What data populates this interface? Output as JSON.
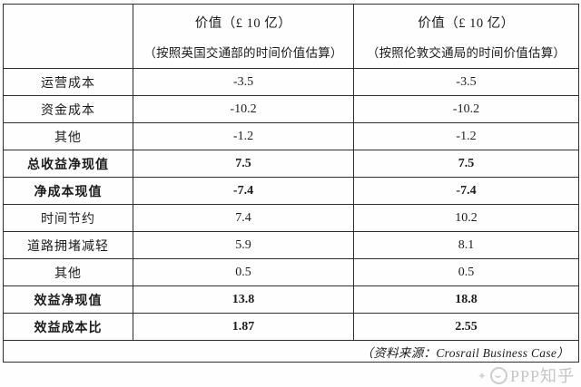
{
  "table": {
    "unit_note": "价值（£ 10 亿）",
    "header": {
      "blank": "",
      "col_dft": {
        "line1": "价值（£ 10 亿）",
        "line2": "（按照英国交通部的时间价值估算）"
      },
      "col_tfl": {
        "line1": "价值（£ 10 亿）",
        "line2": "（按照伦敦交通局的时间价值估算）"
      }
    },
    "rows": [
      {
        "label": "运营成本",
        "dft": "-3.5",
        "tfl": "-3.5",
        "bold": false
      },
      {
        "label": "资金成本",
        "dft": "-10.2",
        "tfl": "-10.2",
        "bold": false
      },
      {
        "label": "其他",
        "dft": "-1.2",
        "tfl": "-1.2",
        "bold": false
      },
      {
        "label": "总收益净现值",
        "dft": "7.5",
        "tfl": "7.5",
        "bold": true
      },
      {
        "label": "净成本现值",
        "dft": "-7.4",
        "tfl": "-7.4",
        "bold": true
      },
      {
        "label": "时间节约",
        "dft": "7.4",
        "tfl": "10.2",
        "bold": false
      },
      {
        "label": "道路拥堵减轻",
        "dft": "5.9",
        "tfl": "8.1",
        "bold": false
      },
      {
        "label": "其他",
        "dft": "0.5",
        "tfl": "0.5",
        "bold": false
      },
      {
        "label": "效益净现值",
        "dft": "13.8",
        "tfl": "18.8",
        "bold": true
      },
      {
        "label": "效益成本比",
        "dft": "1.87",
        "tfl": "2.55",
        "bold": true
      }
    ],
    "footer": "（资料来源：Crosrail Business Case）"
  },
  "watermark": {
    "text": "PPP知乎",
    "icon": "ppp-zhihu-logo"
  },
  "colors": {
    "border": "#2e2e2e",
    "text": "#1c1c1c",
    "background": "#fefefe",
    "watermark": "#c6c6c8"
  }
}
